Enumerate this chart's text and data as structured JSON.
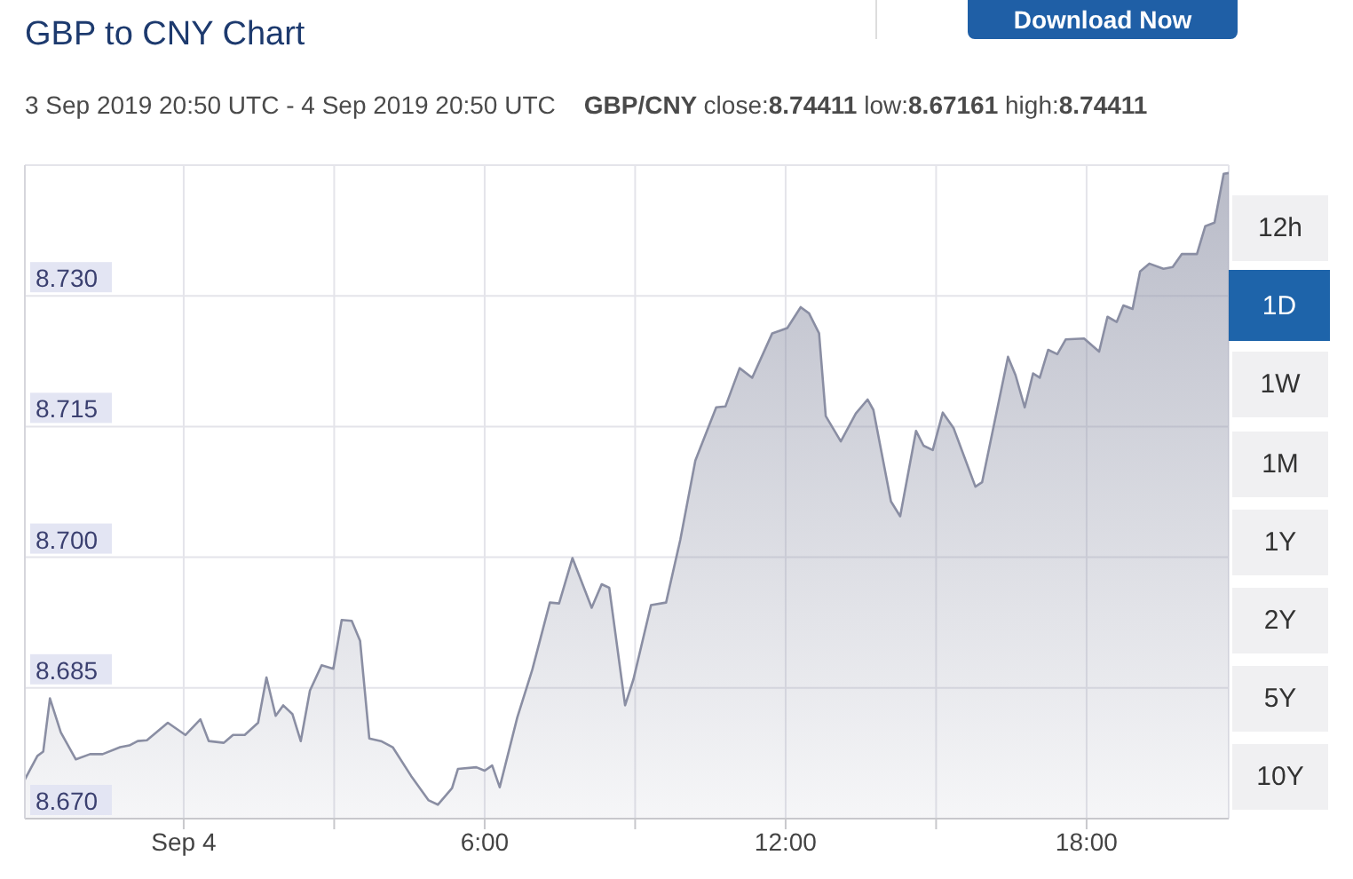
{
  "chart_data": {
    "type": "area",
    "title": "GBP to CNY Chart",
    "subtitle": "3 Sep 2019 20:50 UTC - 4 Sep 2019 20:50 UTC",
    "annotations": [
      "GBP/CNY close:8.74411 low:8.67161 high:8.74411",
      "Download Now",
      "12h",
      "1D",
      "1W",
      "1M",
      "1Y",
      "2Y",
      "5Y",
      "10Y"
    ],
    "color": "#8a8ea3",
    "x": [
      "2019-09-03T20:50",
      "2019-09-03T21:05",
      "2019-09-03T21:12",
      "2019-09-03T21:20",
      "2019-09-03T21:33",
      "2019-09-03T21:51",
      "2019-09-03T22:08",
      "2019-09-03T22:23",
      "2019-09-03T22:44",
      "2019-09-03T22:55",
      "2019-09-03T23:05",
      "2019-09-03T23:16",
      "2019-09-03T23:41",
      "2019-09-04T00:02",
      "2019-09-04T00:20",
      "2019-09-04T00:30",
      "2019-09-04T00:48",
      "2019-09-04T00:59",
      "2019-09-04T01:13",
      "2019-09-04T01:29",
      "2019-09-04T01:39",
      "2019-09-04T01:50",
      "2019-09-04T01:59",
      "2019-09-04T02:10",
      "2019-09-04T02:20",
      "2019-09-04T02:31",
      "2019-09-04T02:45",
      "2019-09-04T02:59",
      "2019-09-04T03:09",
      "2019-09-04T03:21",
      "2019-09-04T03:31",
      "2019-09-04T03:42",
      "2019-09-04T03:56",
      "2019-09-04T04:10",
      "2019-09-04T04:32",
      "2019-09-04T04:53",
      "2019-09-04T05:04",
      "2019-09-04T05:21",
      "2019-09-04T05:28",
      "2019-09-04T05:50",
      "2019-09-04T06:00",
      "2019-09-04T06:09",
      "2019-09-04T06:18",
      "2019-09-04T06:39",
      "2019-09-04T06:57",
      "2019-09-04T07:18",
      "2019-09-04T07:29",
      "2019-09-04T07:45",
      "2019-09-04T08:08",
      "2019-09-04T08:20",
      "2019-09-04T08:29",
      "2019-09-04T08:48",
      "2019-09-04T08:58",
      "2019-09-04T09:19",
      "2019-09-04T09:37",
      "2019-09-04T09:54",
      "2019-09-04T10:12",
      "2019-09-04T10:37",
      "2019-09-04T10:48",
      "2019-09-04T11:05",
      "2019-09-04T11:20",
      "2019-09-04T11:44",
      "2019-09-04T12:02",
      "2019-09-04T12:18",
      "2019-09-04T12:28",
      "2019-09-04T12:40",
      "2019-09-04T12:48",
      "2019-09-04T13:06",
      "2019-09-04T13:24",
      "2019-09-04T13:38",
      "2019-09-04T13:45",
      "2019-09-04T13:56",
      "2019-09-04T14:06",
      "2019-09-04T14:17",
      "2019-09-04T14:36",
      "2019-09-04T14:45",
      "2019-09-04T14:56",
      "2019-09-04T15:08",
      "2019-09-04T15:21",
      "2019-09-04T15:47",
      "2019-09-04T15:55",
      "2019-09-04T16:26",
      "2019-09-04T16:35",
      "2019-09-04T16:46",
      "2019-09-04T16:56",
      "2019-09-04T17:04",
      "2019-09-04T17:14",
      "2019-09-04T17:25",
      "2019-09-04T17:35",
      "2019-09-04T17:57",
      "2019-09-04T18:15",
      "2019-09-04T18:25",
      "2019-09-04T18:36",
      "2019-09-04T18:44",
      "2019-09-04T18:55",
      "2019-09-04T19:04",
      "2019-09-04T19:15",
      "2019-09-04T19:32",
      "2019-09-04T19:43",
      "2019-09-04T19:54",
      "2019-09-04T20:12",
      "2019-09-04T20:22",
      "2019-09-04T20:33",
      "2019-09-04T20:44",
      "2019-09-04T20:50"
    ],
    "values": [
      8.6745,
      8.6772,
      8.6777,
      8.6838,
      8.6799,
      8.6768,
      8.6774,
      8.6774,
      8.6782,
      8.6784,
      8.6789,
      8.679,
      8.681,
      8.6796,
      8.6814,
      8.6789,
      8.6787,
      8.6796,
      8.6796,
      8.681,
      8.6862,
      8.6818,
      8.683,
      8.682,
      8.6789,
      8.6847,
      8.6876,
      8.6872,
      8.6928,
      8.6927,
      8.6904,
      8.6792,
      8.6789,
      8.6782,
      8.6749,
      8.6721,
      8.6716,
      8.6735,
      8.6757,
      8.6759,
      8.6755,
      8.6761,
      8.6736,
      8.6816,
      8.6871,
      8.6948,
      8.6947,
      8.6999,
      8.6942,
      8.6969,
      8.6965,
      8.683,
      8.686,
      8.6945,
      8.6948,
      8.702,
      8.7111,
      8.7172,
      8.7173,
      8.7217,
      8.7206,
      8.7257,
      8.7263,
      8.7287,
      8.728,
      8.7257,
      8.7162,
      8.7133,
      8.7165,
      8.7181,
      8.7169,
      8.7114,
      8.7064,
      8.7047,
      8.7145,
      8.7128,
      8.7123,
      8.7166,
      8.7148,
      8.7081,
      8.7086,
      8.723,
      8.7209,
      8.7172,
      8.7211,
      8.7206,
      8.7238,
      8.7233,
      8.725,
      8.7251,
      8.7236,
      8.7276,
      8.727,
      8.7289,
      8.7285,
      8.7328,
      8.7337,
      8.7331,
      8.7333,
      8.7348,
      8.7348,
      8.738,
      8.7384,
      8.744,
      8.7441
    ],
    "xlim": [
      "2019-09-03T20:50",
      "2019-09-04T20:50"
    ],
    "xticks": [
      {
        "value": "2019-09-04T00:00",
        "label": "Sep 4"
      },
      {
        "value": "2019-09-04T03:00",
        "label": null
      },
      {
        "value": "2019-09-04T06:00",
        "label": "6:00"
      },
      {
        "value": "2019-09-04T09:00",
        "label": null
      },
      {
        "value": "2019-09-04T12:00",
        "label": "12:00"
      },
      {
        "value": "2019-09-04T15:00",
        "label": null
      },
      {
        "value": "2019-09-04T18:00",
        "label": "18:00"
      }
    ],
    "ylim": [
      8.67,
      8.745
    ],
    "yticks": [
      {
        "value": 8.67,
        "label": "8.670"
      },
      8.685,
      {
        "value": 8.7,
        "label": "8.700"
      },
      8.715,
      {
        "value": 8.73,
        "label": "8.730"
      }
    ],
    "grid": true
  }
}
